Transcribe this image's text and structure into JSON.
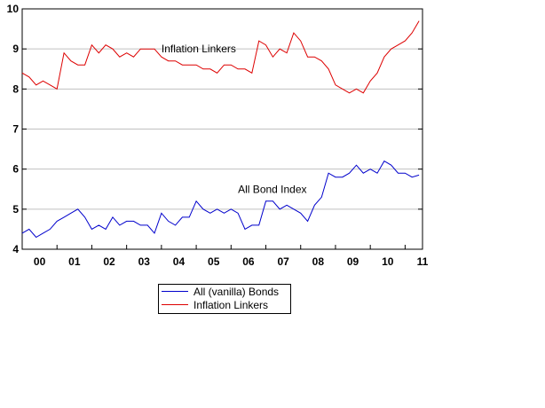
{
  "chart_data": {
    "type": "line",
    "title": "",
    "xlabel": "",
    "ylabel": "",
    "ylim": [
      4,
      10
    ],
    "yticks": [
      4,
      5,
      6,
      7,
      8,
      9,
      10
    ],
    "xlim": [
      2000.0,
      2011.5
    ],
    "xtick_labels": [
      "00",
      "01",
      "02",
      "03",
      "04",
      "05",
      "06",
      "07",
      "08",
      "09",
      "10",
      "11"
    ],
    "grid": "horizontal",
    "legend_position": "below-chart-left",
    "annotations": [
      {
        "text": "Inflation Linkers",
        "x": 2004.0,
        "y": 9.0
      },
      {
        "text": "All Bond Index",
        "x": 2006.2,
        "y": 5.5
      }
    ],
    "series": [
      {
        "name": "All (vanilla) Bonds",
        "color": "#0000cc",
        "x": [
          2000.0,
          2000.2,
          2000.4,
          2000.6,
          2000.8,
          2001.0,
          2001.2,
          2001.4,
          2001.6,
          2001.8,
          2002.0,
          2002.2,
          2002.4,
          2002.6,
          2002.8,
          2003.0,
          2003.2,
          2003.4,
          2003.6,
          2003.8,
          2004.0,
          2004.2,
          2004.4,
          2004.6,
          2004.8,
          2005.0,
          2005.2,
          2005.4,
          2005.6,
          2005.8,
          2006.0,
          2006.2,
          2006.4,
          2006.6,
          2006.8,
          2007.0,
          2007.2,
          2007.4,
          2007.6,
          2007.8,
          2008.0,
          2008.2,
          2008.4,
          2008.6,
          2008.8,
          2009.0,
          2009.2,
          2009.4,
          2009.6,
          2009.8,
          2010.0,
          2010.2,
          2010.4,
          2010.6,
          2010.8,
          2011.0,
          2011.2,
          2011.4
        ],
        "values": [
          4.4,
          4.5,
          4.3,
          4.4,
          4.5,
          4.7,
          4.8,
          4.9,
          5.0,
          4.8,
          4.5,
          4.6,
          4.5,
          4.8,
          4.6,
          4.7,
          4.7,
          4.6,
          4.6,
          4.4,
          4.9,
          4.7,
          4.6,
          4.8,
          4.8,
          5.2,
          5.0,
          4.9,
          5.0,
          4.9,
          5.0,
          4.9,
          4.5,
          4.6,
          4.6,
          5.2,
          5.2,
          5.0,
          5.1,
          5.0,
          4.9,
          4.7,
          5.1,
          5.3,
          5.9,
          5.8,
          5.8,
          5.9,
          6.1,
          5.9,
          6.0,
          5.9,
          6.2,
          6.1,
          5.9,
          5.9,
          5.8,
          5.85
        ]
      },
      {
        "name": "Inflation Linkers",
        "color": "#dd0000",
        "x": [
          2000.0,
          2000.2,
          2000.4,
          2000.6,
          2000.8,
          2001.0,
          2001.2,
          2001.4,
          2001.6,
          2001.8,
          2002.0,
          2002.2,
          2002.4,
          2002.6,
          2002.8,
          2003.0,
          2003.2,
          2003.4,
          2003.6,
          2003.8,
          2004.0,
          2004.2,
          2004.4,
          2004.6,
          2004.8,
          2005.0,
          2005.2,
          2005.4,
          2005.6,
          2005.8,
          2006.0,
          2006.2,
          2006.4,
          2006.6,
          2006.8,
          2007.0,
          2007.2,
          2007.4,
          2007.6,
          2007.8,
          2008.0,
          2008.2,
          2008.4,
          2008.6,
          2008.8,
          2009.0,
          2009.2,
          2009.4,
          2009.6,
          2009.8,
          2010.0,
          2010.2,
          2010.4,
          2010.6,
          2010.8,
          2011.0,
          2011.2,
          2011.4
        ],
        "values": [
          8.4,
          8.3,
          8.1,
          8.2,
          8.1,
          8.0,
          8.9,
          8.7,
          8.6,
          8.6,
          9.1,
          8.9,
          9.1,
          9.0,
          8.8,
          8.9,
          8.8,
          9.0,
          9.0,
          9.0,
          8.8,
          8.7,
          8.7,
          8.6,
          8.6,
          8.6,
          8.5,
          8.5,
          8.4,
          8.6,
          8.6,
          8.5,
          8.5,
          8.4,
          9.2,
          9.1,
          8.8,
          9.0,
          8.9,
          9.4,
          9.2,
          8.8,
          8.8,
          8.7,
          8.5,
          8.1,
          8.0,
          7.9,
          8.0,
          7.9,
          8.2,
          8.4,
          8.8,
          9.0,
          9.1,
          9.2,
          9.4,
          9.7
        ]
      }
    ]
  }
}
